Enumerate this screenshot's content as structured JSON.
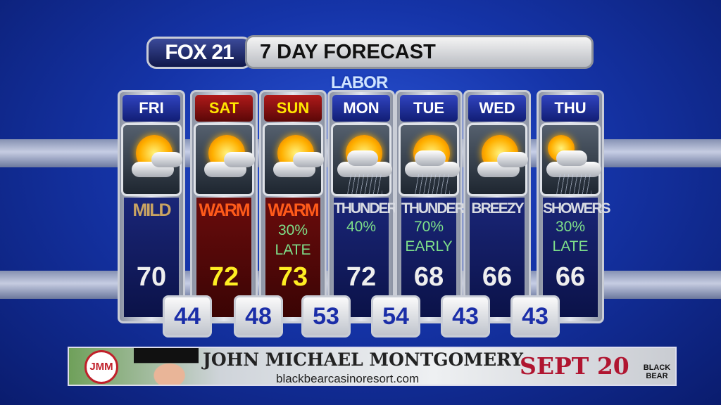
{
  "header": {
    "station": "FOX 21",
    "title": "7 DAY FORECAST",
    "holiday": "LABOR DAY"
  },
  "colors": {
    "background": "#1534a8",
    "weekend_tab": "#b01a1a",
    "precip_text": "#7ee08a",
    "low_text": "#1b2ea8",
    "weekend_high": "#ffee22"
  },
  "days": [
    {
      "day": "FRI",
      "icon": "partly-cloudy-icon",
      "desc": "MILD",
      "pop": "",
      "timing": "",
      "high": "70",
      "low": "44"
    },
    {
      "day": "SAT",
      "icon": "partly-cloudy-icon",
      "desc": "WARM",
      "pop": "",
      "timing": "",
      "high": "72",
      "low": "48"
    },
    {
      "day": "SUN",
      "icon": "partly-cloudy-icon",
      "desc": "WARM",
      "pop": "30%",
      "timing": "LATE",
      "high": "73",
      "low": "53"
    },
    {
      "day": "MON",
      "icon": "thunderstorm-icon",
      "desc": "THUNDER",
      "pop": "40%",
      "timing": "",
      "high": "72",
      "low": "54"
    },
    {
      "day": "TUE",
      "icon": "thunderstorm-icon",
      "desc": "THUNDER",
      "pop": "70%",
      "timing": "EARLY",
      "high": "68",
      "low": "43"
    },
    {
      "day": "WED",
      "icon": "partly-cloudy-icon",
      "desc": "BREEZY",
      "pop": "",
      "timing": "",
      "high": "66",
      "low": "43"
    },
    {
      "day": "THU",
      "icon": "showers-icon",
      "desc": "SHOWERS",
      "pop": "30%",
      "timing": "LATE",
      "high": "66",
      "low": ""
    }
  ],
  "ad": {
    "logo_text": "JMM",
    "artist": "JOHN MICHAEL MONTGOMERY",
    "website": "blackbearcasinoresort.com",
    "date": "SEPT 20",
    "venue_logo": "BLACK BEAR"
  }
}
